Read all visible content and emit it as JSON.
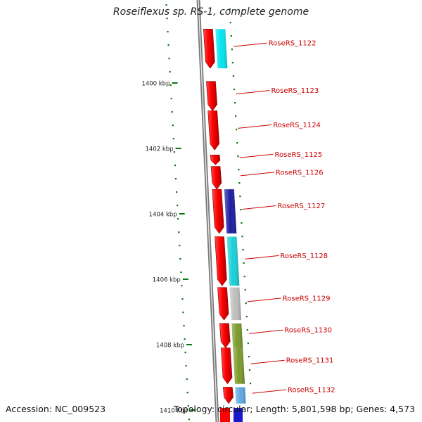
{
  "title": "Roseiflexus sp. RS-1, complete genome",
  "footer": {
    "accession": "Accession: NC_009523",
    "topology": "Topology: circular; Length: 5,801,598 bp; Genes: 4,573"
  },
  "colors": {
    "gene_forward": "#ff0000",
    "tick": "#0a7a0a",
    "label": "#cc0000",
    "backbone": "#8c8c8c"
  },
  "scale": {
    "labels": [
      {
        "kb": 1400,
        "text": "1400 kbp"
      },
      {
        "kb": 1402,
        "text": "1402 kbp"
      },
      {
        "kb": 1404,
        "text": "1404 kbp"
      },
      {
        "kb": 1406,
        "text": "1406 kbp"
      },
      {
        "kb": 1408,
        "text": "1408 kbp"
      },
      {
        "kb": 1410,
        "text": "1410 kbp"
      }
    ]
  },
  "genes": [
    {
      "label": "RoseRS_1122",
      "start_kb": 1398.35,
      "end_kb": 1399.55,
      "category_color": "#00e5ee"
    },
    {
      "label": "RoseRS_1123",
      "start_kb": 1399.95,
      "end_kb": 1400.85,
      "category_color": null
    },
    {
      "label": "RoseRS_1124",
      "start_kb": 1400.85,
      "end_kb": 1402.05,
      "category_color": null
    },
    {
      "label": "RoseRS_1125",
      "start_kb": 1402.2,
      "end_kb": 1402.5,
      "category_color": null
    },
    {
      "label": "RoseRS_1126",
      "start_kb": 1402.55,
      "end_kb": 1403.25,
      "category_color": null
    },
    {
      "label": "RoseRS_1127",
      "start_kb": 1403.25,
      "end_kb": 1404.6,
      "category_color": "#1a1aa0"
    },
    {
      "label": "RoseRS_1128",
      "start_kb": 1404.7,
      "end_kb": 1406.2,
      "category_color": "#19cfd6"
    },
    {
      "label": "RoseRS_1129",
      "start_kb": 1406.25,
      "end_kb": 1407.25,
      "category_color": "#bdbdbd"
    },
    {
      "label": "RoseRS_1130",
      "start_kb": 1407.35,
      "end_kb": 1408.1,
      "category_color": "#7a9a2a"
    },
    {
      "label": "RoseRS_1131",
      "start_kb": 1408.1,
      "end_kb": 1409.2,
      "category_color": "#7a9a2a"
    },
    {
      "label": "RoseRS_1132",
      "start_kb": 1409.3,
      "end_kb": 1409.8,
      "category_color": "#5aa8e0"
    }
  ]
}
